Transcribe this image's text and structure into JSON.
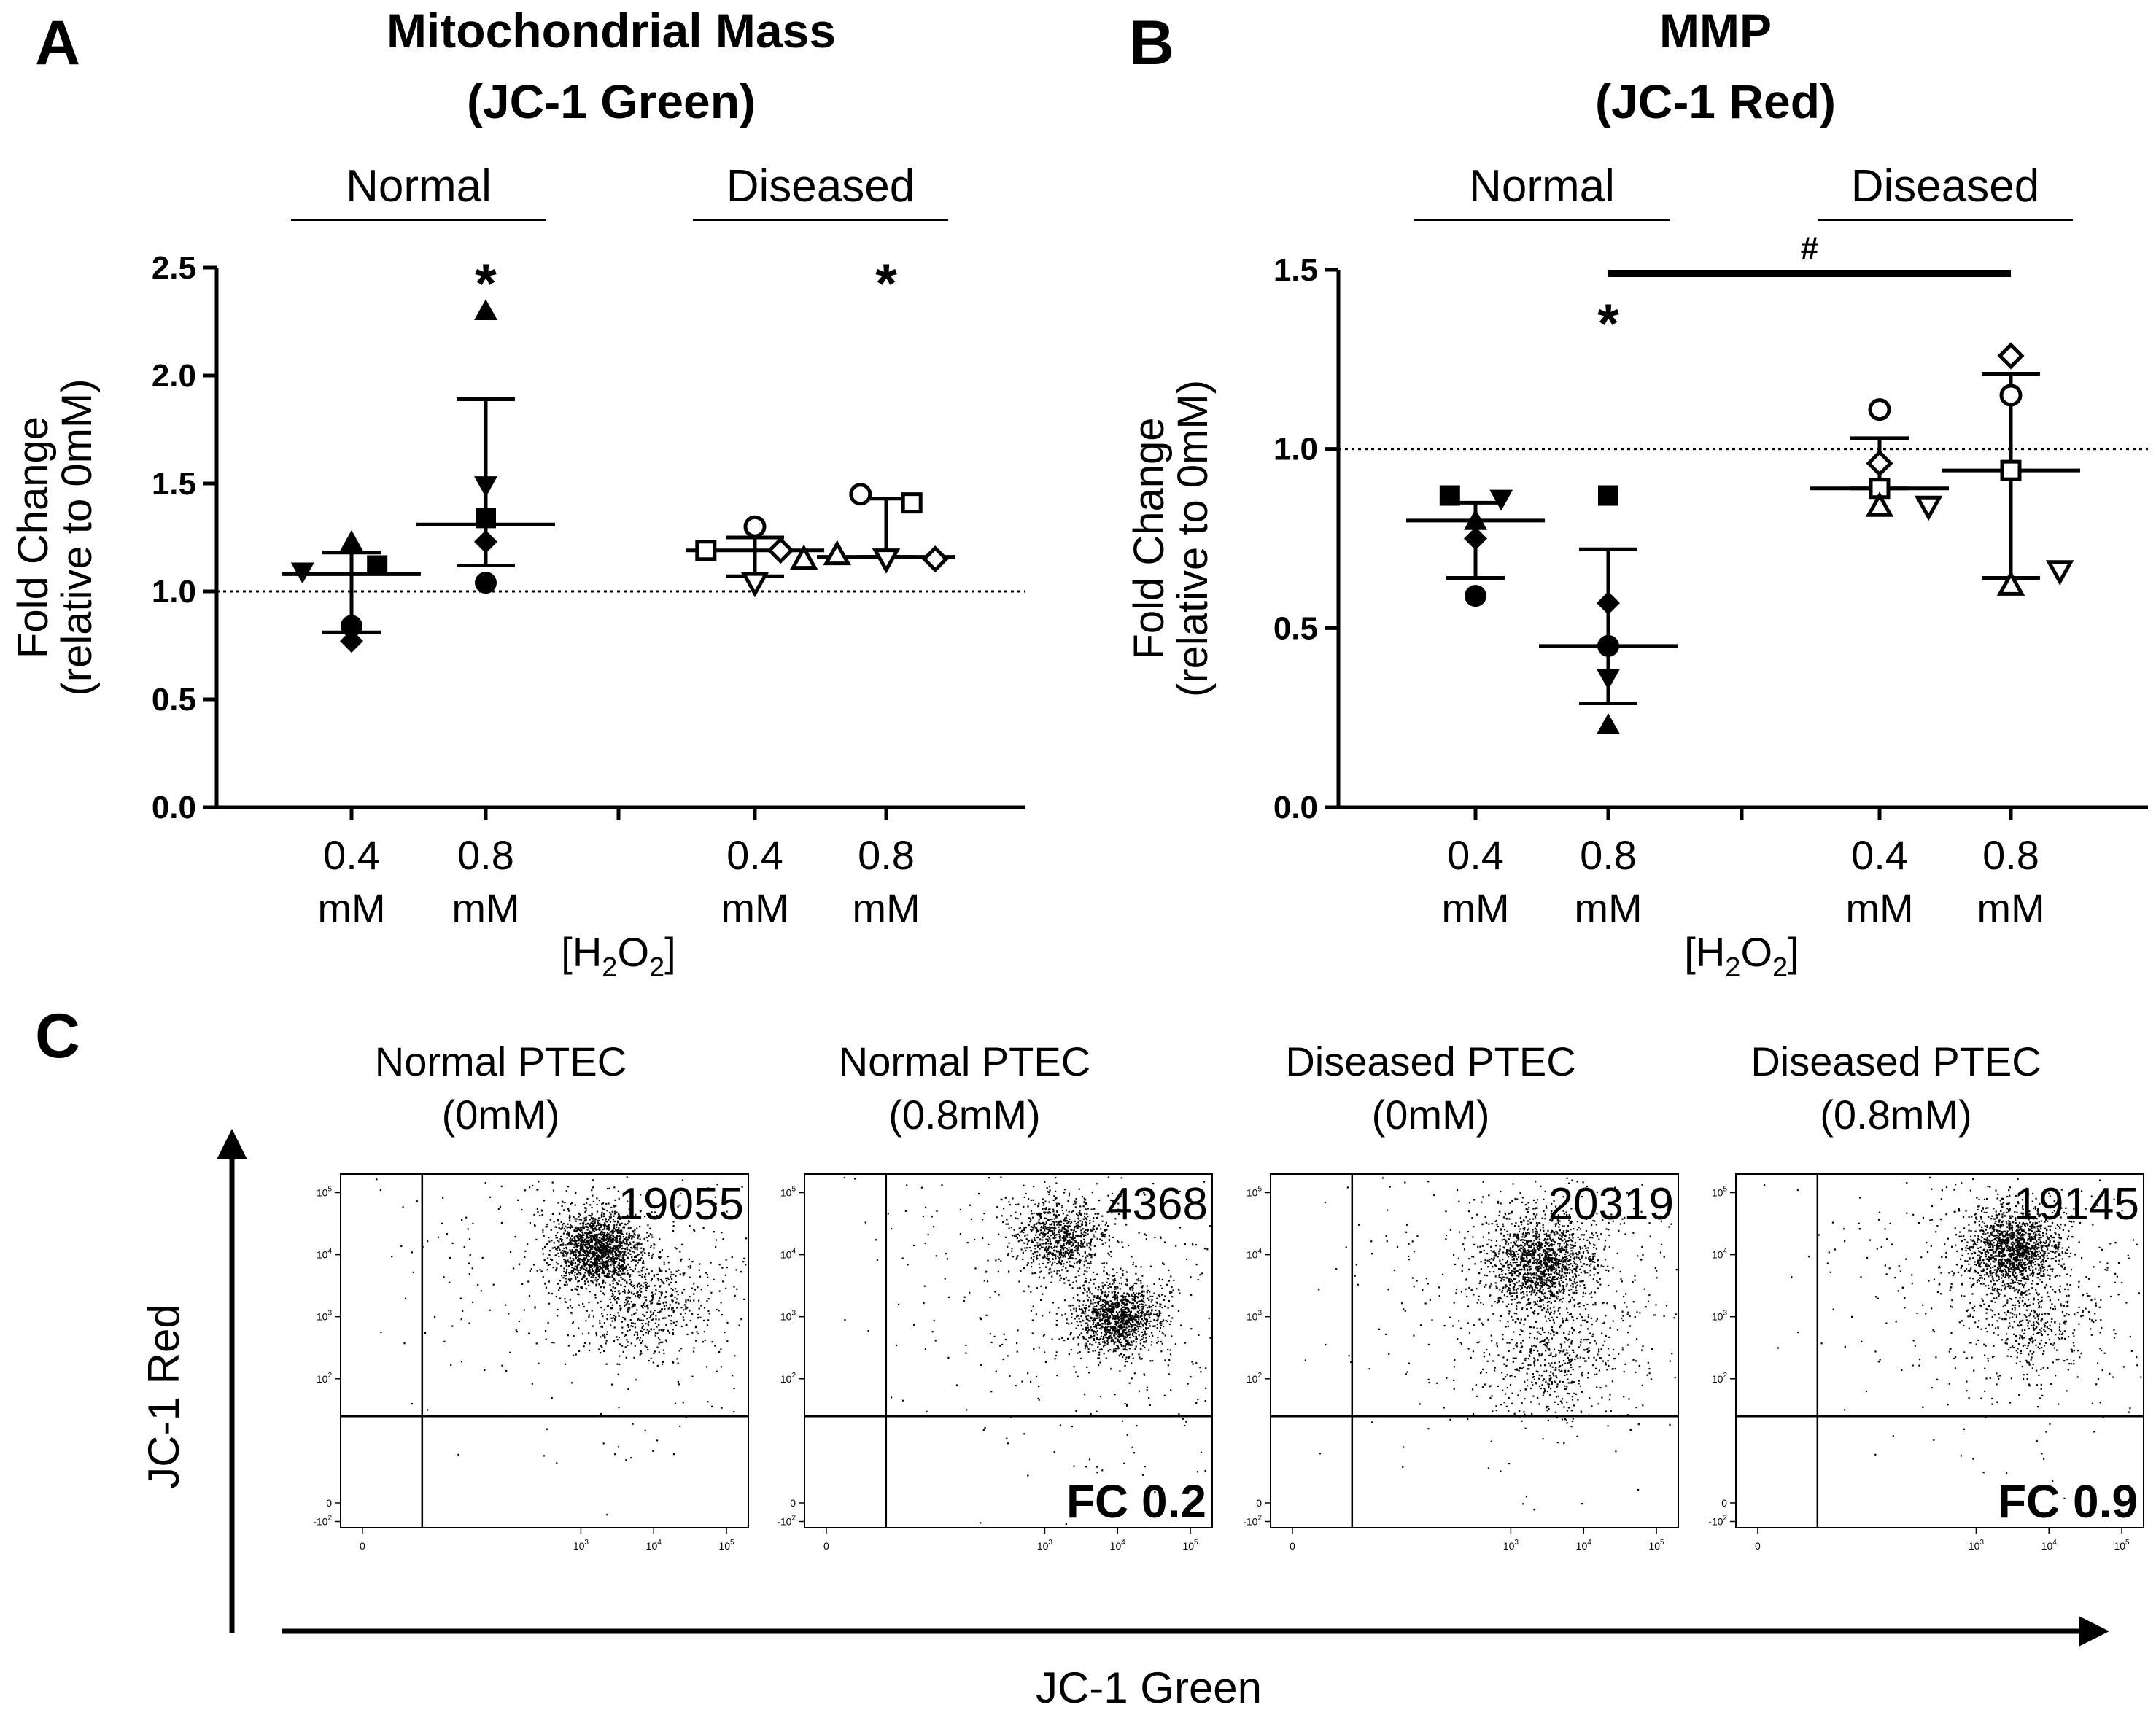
{
  "chart_data": [
    {
      "panel": "A",
      "type": "scatter",
      "title": "Mitochondrial Mass",
      "subtitle": "(JC-1 Green)",
      "ylabel": [
        "Fold Change",
        "(relative to 0mM)"
      ],
      "xlabel": "[H2O2]",
      "xlabel_main": "[H",
      "xlabel_sub1": "2",
      "xlabel_mid": "O",
      "xlabel_sub2": "2",
      "xlabel_end": "]",
      "ylim": [
        0,
        2.5
      ],
      "yticks": [
        "0.0",
        "0.5",
        "1.0",
        "1.5",
        "2.0",
        "2.5"
      ],
      "reference_line": 1.0,
      "groups": [
        {
          "label": "Normal",
          "categories": [
            0,
            1
          ]
        },
        {
          "label": "Diseased",
          "categories": [
            2,
            3
          ]
        }
      ],
      "categories": [
        {
          "label1": "0.4",
          "label2": "mM",
          "mean": 1.08,
          "sd_low": 0.81,
          "sd_high": 1.18,
          "significance": "",
          "points": [
            {
              "marker": "triangle-up",
              "filled": true,
              "value": 1.23
            },
            {
              "marker": "square",
              "filled": true,
              "value": 1.12
            },
            {
              "marker": "triangle-down",
              "filled": true,
              "value": 1.09
            },
            {
              "marker": "circle",
              "filled": true,
              "value": 0.84
            },
            {
              "marker": "diamond",
              "filled": true,
              "value": 0.77
            }
          ]
        },
        {
          "label1": "0.8",
          "label2": "mM",
          "mean": 1.31,
          "sd_low": 1.12,
          "sd_high": 1.89,
          "significance": "*",
          "points": [
            {
              "marker": "triangle-up",
              "filled": true,
              "value": 2.3
            },
            {
              "marker": "triangle-down",
              "filled": true,
              "value": 1.49
            },
            {
              "marker": "square",
              "filled": true,
              "value": 1.34
            },
            {
              "marker": "diamond",
              "filled": true,
              "value": 1.23
            },
            {
              "marker": "circle",
              "filled": true,
              "value": 1.04
            }
          ]
        },
        {
          "label1": "0.4",
          "label2": "mM",
          "mean": 1.19,
          "sd_low": 1.07,
          "sd_high": 1.25,
          "significance": "",
          "points": [
            {
              "marker": "circle",
              "filled": false,
              "value": 1.3
            },
            {
              "marker": "diamond",
              "filled": false,
              "value": 1.19
            },
            {
              "marker": "square",
              "filled": false,
              "value": 1.19
            },
            {
              "marker": "triangle-up",
              "filled": false,
              "value": 1.15
            },
            {
              "marker": "triangle-down",
              "filled": false,
              "value": 1.04
            }
          ]
        },
        {
          "label1": "0.8",
          "label2": "mM",
          "mean": 1.16,
          "sd_low": 1.16,
          "sd_high": 1.43,
          "significance": "*",
          "points": [
            {
              "marker": "circle",
              "filled": false,
              "value": 1.45
            },
            {
              "marker": "square",
              "filled": false,
              "value": 1.41
            },
            {
              "marker": "triangle-up",
              "filled": false,
              "value": 1.17
            },
            {
              "marker": "diamond",
              "filled": false,
              "value": 1.15
            },
            {
              "marker": "triangle-down",
              "filled": false,
              "value": 1.15
            }
          ]
        }
      ]
    },
    {
      "panel": "B",
      "type": "scatter",
      "title": "MMP",
      "subtitle": "(JC-1 Red)",
      "ylabel": [
        "Fold Change",
        "(relative to 0mM)"
      ],
      "xlabel": "[H2O2]",
      "xlabel_main": "[H",
      "xlabel_sub1": "2",
      "xlabel_mid": "O",
      "xlabel_sub2": "2",
      "xlabel_end": "]",
      "ylim": [
        0,
        1.5
      ],
      "yticks": [
        "0.0",
        "0.5",
        "1.0",
        "1.5"
      ],
      "reference_line": 1.0,
      "groups": [
        {
          "label": "Normal",
          "categories": [
            0,
            1
          ]
        },
        {
          "label": "Diseased",
          "categories": [
            2,
            3
          ]
        }
      ],
      "comparison": {
        "from": 1,
        "to": 3,
        "label": "#"
      },
      "categories": [
        {
          "label1": "0.4",
          "label2": "mM",
          "mean": 0.8,
          "sd_low": 0.64,
          "sd_high": 0.85,
          "significance": "",
          "points": [
            {
              "marker": "square",
              "filled": true,
              "value": 0.87
            },
            {
              "marker": "triangle-down",
              "filled": true,
              "value": 0.86
            },
            {
              "marker": "triangle-up",
              "filled": true,
              "value": 0.8
            },
            {
              "marker": "diamond",
              "filled": true,
              "value": 0.75
            },
            {
              "marker": "circle",
              "filled": true,
              "value": 0.59
            }
          ]
        },
        {
          "label1": "0.8",
          "label2": "mM",
          "mean": 0.45,
          "sd_low": 0.29,
          "sd_high": 0.72,
          "significance": "*",
          "points": [
            {
              "marker": "square",
              "filled": true,
              "value": 0.87
            },
            {
              "marker": "diamond",
              "filled": true,
              "value": 0.57
            },
            {
              "marker": "circle",
              "filled": true,
              "value": 0.45
            },
            {
              "marker": "triangle-down",
              "filled": true,
              "value": 0.36
            },
            {
              "marker": "triangle-up",
              "filled": true,
              "value": 0.23
            }
          ]
        },
        {
          "label1": "0.4",
          "label2": "mM",
          "mean": 0.89,
          "sd_low": 0.89,
          "sd_high": 1.03,
          "significance": "",
          "points": [
            {
              "marker": "circle",
              "filled": false,
              "value": 1.11
            },
            {
              "marker": "diamond",
              "filled": false,
              "value": 0.96
            },
            {
              "marker": "square",
              "filled": false,
              "value": 0.89
            },
            {
              "marker": "triangle-down",
              "filled": false,
              "value": 0.84
            },
            {
              "marker": "triangle-up",
              "filled": false,
              "value": 0.84
            }
          ]
        },
        {
          "label1": "0.8",
          "label2": "mM",
          "mean": 0.94,
          "sd_low": 0.64,
          "sd_high": 1.21,
          "significance": "",
          "points": [
            {
              "marker": "diamond",
              "filled": false,
              "value": 1.26
            },
            {
              "marker": "circle",
              "filled": false,
              "value": 1.15
            },
            {
              "marker": "square",
              "filled": false,
              "value": 0.94
            },
            {
              "marker": "triangle-down",
              "filled": false,
              "value": 0.66
            },
            {
              "marker": "triangle-up",
              "filled": false,
              "value": 0.62
            }
          ]
        }
      ]
    },
    {
      "panel": "C",
      "type": "scatter",
      "xlabel": "JC-1 Green",
      "ylabel": "JC-1 Red",
      "x_ticks": [
        "0",
        "10",
        "10",
        "10"
      ],
      "x_tick_exponents": [
        "",
        "3",
        "4",
        "5"
      ],
      "y_ticks": [
        "10",
        "10",
        "10",
        "10",
        "0",
        "-10"
      ],
      "y_tick_exponents": [
        "5",
        "4",
        "3",
        "2",
        "",
        "2"
      ],
      "plots": [
        {
          "title": "Normal PTEC",
          "subtitle": "(0mM)",
          "count": "19055",
          "fc": "",
          "clusters": [
            {
              "x": 3.2,
              "y": 4.1,
              "spread": 0.55,
              "weight": 0.75
            },
            {
              "x": 3.9,
              "y": 3.2,
              "spread": 0.8,
              "weight": 0.25
            }
          ]
        },
        {
          "title": "Normal PTEC",
          "subtitle": "(0.8mM)",
          "count": "4368",
          "fc": "FC 0.2",
          "clusters": [
            {
              "x": 3.2,
              "y": 4.3,
              "spread": 0.6,
              "weight": 0.4
            },
            {
              "x": 4.0,
              "y": 3.0,
              "spread": 0.55,
              "weight": 0.6
            }
          ]
        },
        {
          "title": "Diseased PTEC",
          "subtitle": "(0mM)",
          "count": "20319",
          "fc": "",
          "clusters": [
            {
              "x": 3.4,
              "y": 3.9,
              "spread": 0.7,
              "weight": 0.75
            },
            {
              "x": 3.6,
              "y": 2.4,
              "spread": 0.9,
              "weight": 0.25
            }
          ]
        },
        {
          "title": "Diseased PTEC",
          "subtitle": "(0.8mM)",
          "count": "19145",
          "fc": "FC 0.9",
          "clusters": [
            {
              "x": 3.5,
              "y": 4.1,
              "spread": 0.6,
              "weight": 0.8
            },
            {
              "x": 3.7,
              "y": 2.9,
              "spread": 0.9,
              "weight": 0.2
            }
          ]
        }
      ]
    }
  ],
  "panel_labels": {
    "a": "A",
    "b": "B",
    "c": "C"
  }
}
